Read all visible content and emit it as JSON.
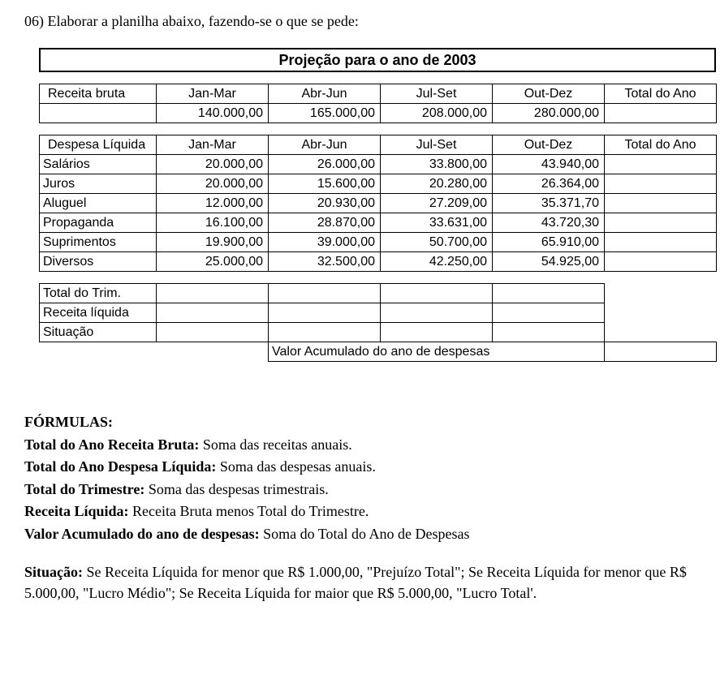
{
  "question": "06) Elaborar a planilha abaixo, fazendo-se o que se pede:",
  "title": "Projeção para o ano de 2003",
  "headers": {
    "receita_bruta": "Receita bruta",
    "despesa_liquida": "Despesa Líquida",
    "jan_mar": "Jan-Mar",
    "abr_jun": "Abr-Jun",
    "jul_set": "Jul-Set",
    "out_dez": "Out-Dez",
    "total_ano": "Total do Ano"
  },
  "receita_values": {
    "q1": "140.000,00",
    "q2": "165.000,00",
    "q3": "208.000,00",
    "q4": "280.000,00"
  },
  "despesas": [
    {
      "label": "Salários",
      "q1": "20.000,00",
      "q2": "26.000,00",
      "q3": "33.800,00",
      "q4": "43.940,00"
    },
    {
      "label": "Juros",
      "q1": "20.000,00",
      "q2": "15.600,00",
      "q3": "20.280,00",
      "q4": "26.364,00"
    },
    {
      "label": "Aluguel",
      "q1": "12.000,00",
      "q2": "20.930,00",
      "q3": "27.209,00",
      "q4": "35.371,70"
    },
    {
      "label": "Propaganda",
      "q1": "16.100,00",
      "q2": "28.870,00",
      "q3": "33.631,00",
      "q4": "43.720,30"
    },
    {
      "label": "Suprimentos",
      "q1": "19.900,00",
      "q2": "39.000,00",
      "q3": "50.700,00",
      "q4": "65.910,00"
    },
    {
      "label": "Diversos",
      "q1": "25.000,00",
      "q2": "32.500,00",
      "q3": "42.250,00",
      "q4": "54.925,00"
    }
  ],
  "summary_labels": {
    "total_trim": "Total do Trim.",
    "receita_liquida": "Receita líquida",
    "situacao": "Situação",
    "valor_acumulado": "Valor Acumulado do ano de despesas"
  },
  "formulas": {
    "heading": "FÓRMULAS:",
    "items": [
      {
        "label": "Total do Ano Receita Bruta:",
        "text": " Soma das receitas anuais."
      },
      {
        "label": "Total do Ano Despesa Líquida:",
        "text": " Soma das despesas anuais."
      },
      {
        "label": "Total do Trimestre:",
        "text": " Soma das despesas trimestrais."
      },
      {
        "label": "Receita Líquida:",
        "text": " Receita Bruta menos Total do Trimestre."
      },
      {
        "label": "Valor Acumulado do ano de despesas:",
        "text": " Soma do Total do Ano de Despesas"
      }
    ],
    "situacao_label": "Situação:",
    "situacao_text": " Se Receita Líquida for menor que R$ 1.000,00, \"Prejuízo Total\"; Se Receita Líquida for menor que R$ 5.000,00, \"Lucro Médio\"; Se Receita Líquida for maior que R$ 5.000,00, \"Lucro Total'."
  }
}
